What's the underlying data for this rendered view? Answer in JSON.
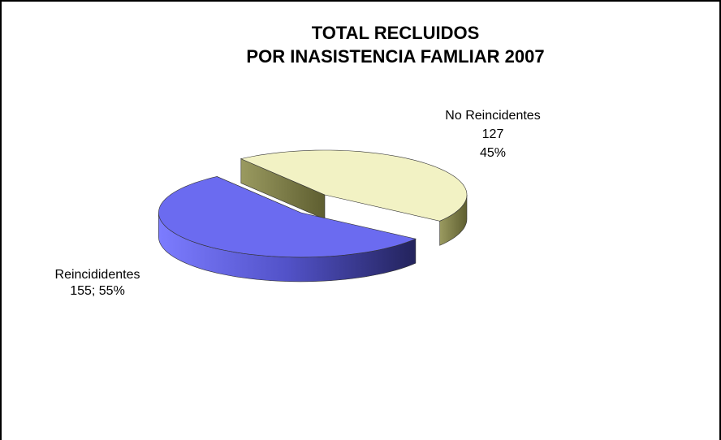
{
  "chart_data": {
    "type": "pie",
    "title": [
      "TOTAL RECLUIDOS",
      "POR INASISTENCIA FAMLIAR 2007"
    ],
    "categories": [
      "Reincididentes",
      "No Reincidentes"
    ],
    "values": [
      155,
      127
    ],
    "value_labels": [
      "155; 55%",
      "127\n45%"
    ],
    "colors": [
      "#6b6bf0",
      "#f2f2c4"
    ],
    "exploded": [
      true,
      false
    ]
  }
}
